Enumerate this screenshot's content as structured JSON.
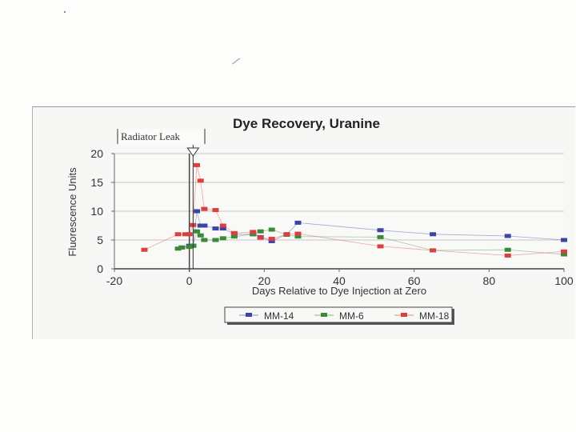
{
  "chart_data": {
    "type": "scatter",
    "title": "Dye Recovery, Uranine",
    "xlabel": "Days Relative to Dye Injection at Zero",
    "ylabel": "Fluorescence Units",
    "xlim": [
      -20,
      100
    ],
    "ylim": [
      0,
      20
    ],
    "xticks": [
      -20,
      0,
      20,
      40,
      60,
      80,
      100
    ],
    "yticks": [
      0,
      5,
      10,
      15,
      20
    ],
    "grid": "horizontal",
    "legend_position": "bottom",
    "annotation": {
      "text": "Radiator Leak",
      "x": 1
    },
    "series": [
      {
        "name": "MM-14",
        "color": "#3c44a4",
        "points": [
          [
            -2,
            3.7
          ],
          [
            0,
            4
          ],
          [
            1,
            4
          ],
          [
            2,
            10
          ],
          [
            3,
            7.5
          ],
          [
            4,
            7.5
          ],
          [
            7,
            7
          ],
          [
            9,
            7
          ],
          [
            12,
            6
          ],
          [
            17,
            6
          ],
          [
            19,
            5.5
          ],
          [
            22,
            4.8
          ],
          [
            26,
            6
          ],
          [
            29,
            8
          ],
          [
            51,
            6.7
          ],
          [
            65,
            6
          ],
          [
            85,
            5.7
          ],
          [
            100,
            5
          ]
        ]
      },
      {
        "name": "MM-6",
        "color": "#3a8a3a",
        "points": [
          [
            -3,
            3.5
          ],
          [
            -2,
            3.7
          ],
          [
            0,
            3.8
          ],
          [
            1,
            4
          ],
          [
            2,
            6.5
          ],
          [
            3,
            5.8
          ],
          [
            4,
            5
          ],
          [
            7,
            5
          ],
          [
            9,
            5.3
          ],
          [
            12,
            5.6
          ],
          [
            17,
            6
          ],
          [
            19,
            6.5
          ],
          [
            22,
            6.8
          ],
          [
            26,
            5.9
          ],
          [
            29,
            5.6
          ],
          [
            51,
            5.5
          ],
          [
            65,
            3.2
          ],
          [
            85,
            3.3
          ],
          [
            100,
            2.5
          ]
        ]
      },
      {
        "name": "MM-18",
        "color": "#d94040",
        "points": [
          [
            -12,
            3.3
          ],
          [
            -3,
            6
          ],
          [
            -1,
            6
          ],
          [
            0,
            6
          ],
          [
            1,
            7.6
          ],
          [
            2,
            18
          ],
          [
            3,
            15.3
          ],
          [
            4,
            10.4
          ],
          [
            7,
            10.2
          ],
          [
            9,
            7.5
          ],
          [
            12,
            6.2
          ],
          [
            17,
            6.4
          ],
          [
            19,
            5.4
          ],
          [
            22,
            5.2
          ],
          [
            26,
            6
          ],
          [
            29,
            6.1
          ],
          [
            51,
            3.9
          ],
          [
            65,
            3.2
          ],
          [
            85,
            2.3
          ],
          [
            100,
            3
          ]
        ]
      }
    ]
  }
}
